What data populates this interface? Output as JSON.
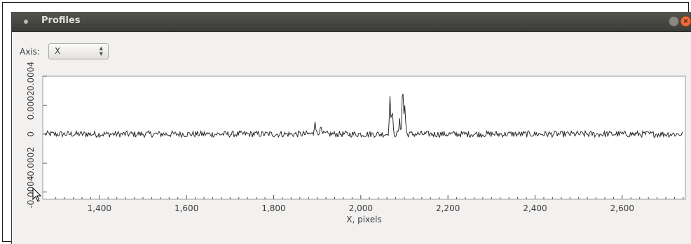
{
  "window": {
    "title": "Profiles",
    "close_glyph": "×"
  },
  "axis_control": {
    "label": "Axis:",
    "selected": "X"
  },
  "chart_data": {
    "type": "line",
    "title": "",
    "xlabel": "X, pixels",
    "ylabel": "",
    "xlim": [
      1270,
      2745
    ],
    "ylim": [
      -0.00045,
      0.0004
    ],
    "x_ticks": [
      1400,
      1600,
      1800,
      2000,
      2200,
      2400,
      2600
    ],
    "x_tick_labels": [
      "1,400",
      "1,600",
      "1,800",
      "2,000",
      "2,200",
      "2,400",
      "2,600"
    ],
    "y_ticks": [
      -0.0004,
      -0.0002,
      0,
      0.0002,
      0.0004
    ],
    "y_tick_labels": [
      "-0.0004",
      "-0.0002",
      "0",
      "0.0002",
      "0.0004"
    ],
    "grid": false,
    "line_color": "#2b2b2b",
    "series": [
      {
        "noise_amplitude": 2.2e-05,
        "baseline": 0,
        "peaks": [
          {
            "x": 1895,
            "y": 0.000105
          },
          {
            "x": 1907,
            "y": 6e-05
          },
          {
            "x": 2067,
            "y": 0.000245
          },
          {
            "x": 2072,
            "y": 0.00015
          },
          {
            "x": 2089,
            "y": 9e-05
          },
          {
            "x": 2096,
            "y": 0.000325
          },
          {
            "x": 2101,
            "y": 0.0002
          }
        ]
      }
    ]
  }
}
